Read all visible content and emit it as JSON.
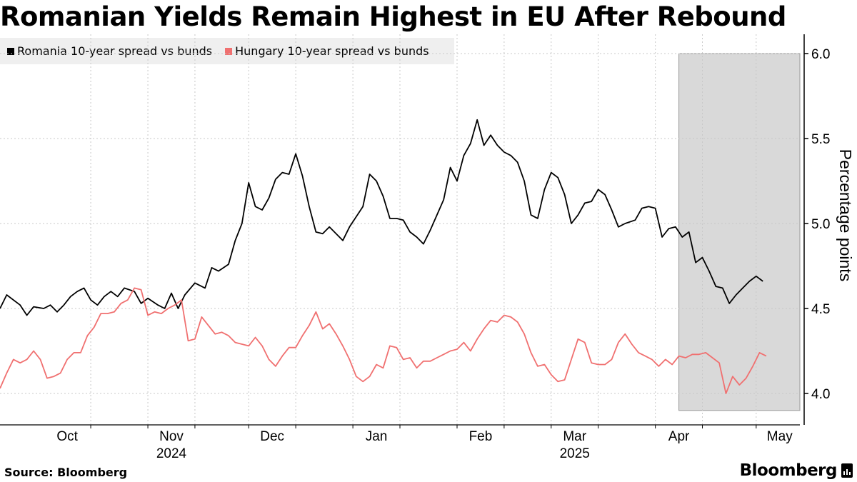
{
  "header": {
    "title": "Romanian Yields Remain Highest in EU After Rebound"
  },
  "footer": {
    "source": "Source: Bloomberg",
    "brand": "Bloomberg"
  },
  "colors": {
    "romania": "#000000",
    "hungary": "#f07070",
    "shade": "#d9d9d9",
    "grid": "#c8c8c8"
  },
  "chart_data": {
    "type": "line",
    "title": "Romanian Yields Remain Highest in EU After Rebound",
    "ylabel": "Percentage points",
    "xlabel": "",
    "ylim": [
      3.9,
      6.0
    ],
    "yticks": [
      4.0,
      4.5,
      5.0,
      5.5,
      6.0
    ],
    "ytick_labels": [
      "4.0",
      "4.5",
      "5.0",
      "5.5",
      "6.0"
    ],
    "x_start": "2024-09-18",
    "x_end": "2025-05-14",
    "x_gridlines": [
      "2024-10-15",
      "2024-11-01",
      "2024-11-15",
      "2024-12-01",
      "2024-12-15",
      "2025-01-01",
      "2025-01-15",
      "2025-02-01",
      "2025-02-15",
      "2025-03-01",
      "2025-03-15",
      "2025-04-01",
      "2025-04-15",
      "2025-05-01"
    ],
    "month_labels": [
      {
        "label": "Oct",
        "date": "2024-10-08"
      },
      {
        "label": "Nov",
        "date": "2024-11-08"
      },
      {
        "label": "Dec",
        "date": "2024-12-08"
      },
      {
        "label": "Jan",
        "date": "2025-01-08"
      },
      {
        "label": "Feb",
        "date": "2025-02-08"
      },
      {
        "label": "Mar",
        "date": "2025-03-08"
      },
      {
        "label": "Apr",
        "date": "2025-04-08"
      },
      {
        "label": "May",
        "date": "2025-05-08"
      }
    ],
    "year_labels": [
      {
        "label": "2024",
        "date": "2024-11-08"
      },
      {
        "label": "2025",
        "date": "2025-03-08"
      }
    ],
    "shaded_region": {
      "start": "2025-04-08",
      "end": "2025-05-14",
      "ymin": 3.9,
      "ymax": 6.0
    },
    "legend": [
      "Romania 10-year spread vs bunds",
      "Hungary 10-year spread vs bunds"
    ],
    "series": [
      {
        "name": "Romania 10-year spread vs bunds",
        "points": [
          [
            "2024-09-18",
            4.5
          ],
          [
            "2024-09-20",
            4.58
          ],
          [
            "2024-09-24",
            4.52
          ],
          [
            "2024-09-26",
            4.46
          ],
          [
            "2024-09-28",
            4.51
          ],
          [
            "2024-10-01",
            4.5
          ],
          [
            "2024-10-03",
            4.52
          ],
          [
            "2024-10-05",
            4.48
          ],
          [
            "2024-10-07",
            4.52
          ],
          [
            "2024-10-09",
            4.57
          ],
          [
            "2024-10-11",
            4.6
          ],
          [
            "2024-10-13",
            4.62
          ],
          [
            "2024-10-15",
            4.55
          ],
          [
            "2024-10-17",
            4.52
          ],
          [
            "2024-10-19",
            4.57
          ],
          [
            "2024-10-21",
            4.6
          ],
          [
            "2024-10-23",
            4.57
          ],
          [
            "2024-10-25",
            4.62
          ],
          [
            "2024-10-28",
            4.6
          ],
          [
            "2024-10-30",
            4.53
          ],
          [
            "2024-11-01",
            4.56
          ],
          [
            "2024-11-04",
            4.52
          ],
          [
            "2024-11-06",
            4.5
          ],
          [
            "2024-11-08",
            4.59
          ],
          [
            "2024-11-10",
            4.5
          ],
          [
            "2024-11-12",
            4.58
          ],
          [
            "2024-11-15",
            4.65
          ],
          [
            "2024-11-18",
            4.62
          ],
          [
            "2024-11-20",
            4.74
          ],
          [
            "2024-11-22",
            4.72
          ],
          [
            "2024-11-25",
            4.76
          ],
          [
            "2024-11-27",
            4.9
          ],
          [
            "2024-11-29",
            5.0
          ],
          [
            "2024-12-01",
            5.24
          ],
          [
            "2024-12-03",
            5.1
          ],
          [
            "2024-12-05",
            5.08
          ],
          [
            "2024-12-07",
            5.15
          ],
          [
            "2024-12-09",
            5.26
          ],
          [
            "2024-12-11",
            5.3
          ],
          [
            "2024-12-13",
            5.29
          ],
          [
            "2024-12-15",
            5.41
          ],
          [
            "2024-12-17",
            5.28
          ],
          [
            "2024-12-19",
            5.1
          ],
          [
            "2024-12-21",
            4.95
          ],
          [
            "2024-12-23",
            4.94
          ],
          [
            "2024-12-25",
            4.98
          ],
          [
            "2024-12-27",
            4.94
          ],
          [
            "2024-12-29",
            4.9
          ],
          [
            "2024-12-31",
            4.98
          ],
          [
            "2025-01-02",
            5.04
          ],
          [
            "2025-01-04",
            5.1
          ],
          [
            "2025-01-06",
            5.29
          ],
          [
            "2025-01-08",
            5.25
          ],
          [
            "2025-01-10",
            5.16
          ],
          [
            "2025-01-12",
            5.03
          ],
          [
            "2025-01-14",
            5.03
          ],
          [
            "2025-01-16",
            5.02
          ],
          [
            "2025-01-18",
            4.95
          ],
          [
            "2025-01-20",
            4.92
          ],
          [
            "2025-01-22",
            4.88
          ],
          [
            "2025-01-24",
            4.96
          ],
          [
            "2025-01-26",
            5.05
          ],
          [
            "2025-01-28",
            5.14
          ],
          [
            "2025-01-30",
            5.33
          ],
          [
            "2025-02-01",
            5.25
          ],
          [
            "2025-02-03",
            5.4
          ],
          [
            "2025-02-05",
            5.47
          ],
          [
            "2025-02-07",
            5.61
          ],
          [
            "2025-02-09",
            5.46
          ],
          [
            "2025-02-11",
            5.52
          ],
          [
            "2025-02-13",
            5.46
          ],
          [
            "2025-02-15",
            5.42
          ],
          [
            "2025-02-17",
            5.4
          ],
          [
            "2025-02-19",
            5.36
          ],
          [
            "2025-02-21",
            5.25
          ],
          [
            "2025-02-23",
            5.05
          ],
          [
            "2025-02-25",
            5.03
          ],
          [
            "2025-02-27",
            5.2
          ],
          [
            "2025-03-01",
            5.3
          ],
          [
            "2025-03-03",
            5.27
          ],
          [
            "2025-03-05",
            5.17
          ],
          [
            "2025-03-07",
            5.0
          ],
          [
            "2025-03-09",
            5.05
          ],
          [
            "2025-03-11",
            5.12
          ],
          [
            "2025-03-13",
            5.13
          ],
          [
            "2025-03-15",
            5.2
          ],
          [
            "2025-03-17",
            5.17
          ],
          [
            "2025-03-19",
            5.08
          ],
          [
            "2025-03-21",
            4.98
          ],
          [
            "2025-03-23",
            5.0
          ],
          [
            "2025-03-26",
            5.02
          ],
          [
            "2025-03-28",
            5.09
          ],
          [
            "2025-03-30",
            5.1
          ],
          [
            "2025-04-01",
            5.09
          ],
          [
            "2025-04-03",
            4.92
          ],
          [
            "2025-04-05",
            4.97
          ],
          [
            "2025-04-07",
            4.98
          ],
          [
            "2025-04-09",
            4.92
          ],
          [
            "2025-04-11",
            4.95
          ],
          [
            "2025-04-13",
            4.77
          ],
          [
            "2025-04-15",
            4.8
          ],
          [
            "2025-04-17",
            4.72
          ],
          [
            "2025-04-19",
            4.63
          ],
          [
            "2025-04-21",
            4.62
          ],
          [
            "2025-04-23",
            4.53
          ],
          [
            "2025-04-25",
            4.58
          ],
          [
            "2025-04-27",
            4.62
          ],
          [
            "2025-04-29",
            4.66
          ],
          [
            "2025-05-01",
            4.69
          ],
          [
            "2025-05-03",
            4.66
          ]
        ]
      },
      {
        "name": "Hungary 10-year spread vs bunds",
        "points": [
          [
            "2024-09-18",
            4.03
          ],
          [
            "2024-09-20",
            4.12
          ],
          [
            "2024-09-22",
            4.2
          ],
          [
            "2024-09-24",
            4.18
          ],
          [
            "2024-09-26",
            4.2
          ],
          [
            "2024-09-28",
            4.25
          ],
          [
            "2024-09-30",
            4.2
          ],
          [
            "2024-10-02",
            4.09
          ],
          [
            "2024-10-04",
            4.1
          ],
          [
            "2024-10-06",
            4.12
          ],
          [
            "2024-10-08",
            4.2
          ],
          [
            "2024-10-10",
            4.24
          ],
          [
            "2024-10-12",
            4.24
          ],
          [
            "2024-10-14",
            4.34
          ],
          [
            "2024-10-16",
            4.39
          ],
          [
            "2024-10-18",
            4.47
          ],
          [
            "2024-10-20",
            4.47
          ],
          [
            "2024-10-22",
            4.48
          ],
          [
            "2024-10-24",
            4.53
          ],
          [
            "2024-10-26",
            4.55
          ],
          [
            "2024-10-28",
            4.62
          ],
          [
            "2024-10-30",
            4.61
          ],
          [
            "2024-11-01",
            4.46
          ],
          [
            "2024-11-03",
            4.48
          ],
          [
            "2024-11-05",
            4.47
          ],
          [
            "2024-11-07",
            4.5
          ],
          [
            "2024-11-09",
            4.52
          ],
          [
            "2024-11-11",
            4.55
          ],
          [
            "2024-11-13",
            4.31
          ],
          [
            "2024-11-15",
            4.32
          ],
          [
            "2024-11-17",
            4.45
          ],
          [
            "2024-11-19",
            4.4
          ],
          [
            "2024-11-21",
            4.35
          ],
          [
            "2024-11-23",
            4.36
          ],
          [
            "2024-11-25",
            4.34
          ],
          [
            "2024-11-27",
            4.3
          ],
          [
            "2024-11-29",
            4.29
          ],
          [
            "2024-12-01",
            4.28
          ],
          [
            "2024-12-03",
            4.33
          ],
          [
            "2024-12-05",
            4.28
          ],
          [
            "2024-12-07",
            4.2
          ],
          [
            "2024-12-09",
            4.16
          ],
          [
            "2024-12-11",
            4.22
          ],
          [
            "2024-12-13",
            4.27
          ],
          [
            "2024-12-15",
            4.27
          ],
          [
            "2024-12-17",
            4.34
          ],
          [
            "2024-12-19",
            4.4
          ],
          [
            "2024-12-21",
            4.48
          ],
          [
            "2024-12-23",
            4.38
          ],
          [
            "2024-12-25",
            4.41
          ],
          [
            "2024-12-27",
            4.35
          ],
          [
            "2024-12-29",
            4.28
          ],
          [
            "2024-12-31",
            4.2
          ],
          [
            "2025-01-02",
            4.1
          ],
          [
            "2025-01-04",
            4.07
          ],
          [
            "2025-01-06",
            4.1
          ],
          [
            "2025-01-08",
            4.17
          ],
          [
            "2025-01-10",
            4.15
          ],
          [
            "2025-01-12",
            4.28
          ],
          [
            "2025-01-14",
            4.27
          ],
          [
            "2025-01-16",
            4.2
          ],
          [
            "2025-01-18",
            4.21
          ],
          [
            "2025-01-20",
            4.15
          ],
          [
            "2025-01-22",
            4.19
          ],
          [
            "2025-01-24",
            4.19
          ],
          [
            "2025-01-26",
            4.21
          ],
          [
            "2025-01-28",
            4.23
          ],
          [
            "2025-01-30",
            4.25
          ],
          [
            "2025-02-01",
            4.26
          ],
          [
            "2025-02-03",
            4.3
          ],
          [
            "2025-02-05",
            4.25
          ],
          [
            "2025-02-07",
            4.32
          ],
          [
            "2025-02-09",
            4.38
          ],
          [
            "2025-02-11",
            4.43
          ],
          [
            "2025-02-13",
            4.42
          ],
          [
            "2025-02-15",
            4.46
          ],
          [
            "2025-02-17",
            4.45
          ],
          [
            "2025-02-19",
            4.42
          ],
          [
            "2025-02-21",
            4.35
          ],
          [
            "2025-02-23",
            4.24
          ],
          [
            "2025-02-25",
            4.16
          ],
          [
            "2025-02-27",
            4.17
          ],
          [
            "2025-03-01",
            4.11
          ],
          [
            "2025-03-03",
            4.07
          ],
          [
            "2025-03-05",
            4.08
          ],
          [
            "2025-03-07",
            4.2
          ],
          [
            "2025-03-09",
            4.32
          ],
          [
            "2025-03-11",
            4.3
          ],
          [
            "2025-03-13",
            4.18
          ],
          [
            "2025-03-15",
            4.17
          ],
          [
            "2025-03-17",
            4.17
          ],
          [
            "2025-03-19",
            4.2
          ],
          [
            "2025-03-21",
            4.3
          ],
          [
            "2025-03-23",
            4.35
          ],
          [
            "2025-03-25",
            4.29
          ],
          [
            "2025-03-27",
            4.24
          ],
          [
            "2025-03-29",
            4.22
          ],
          [
            "2025-03-31",
            4.2
          ],
          [
            "2025-04-02",
            4.16
          ],
          [
            "2025-04-04",
            4.2
          ],
          [
            "2025-04-06",
            4.17
          ],
          [
            "2025-04-08",
            4.22
          ],
          [
            "2025-04-10",
            4.21
          ],
          [
            "2025-04-12",
            4.23
          ],
          [
            "2025-04-14",
            4.23
          ],
          [
            "2025-04-16",
            4.24
          ],
          [
            "2025-04-18",
            4.21
          ],
          [
            "2025-04-20",
            4.18
          ],
          [
            "2025-04-22",
            4.0
          ],
          [
            "2025-04-24",
            4.1
          ],
          [
            "2025-04-26",
            4.05
          ],
          [
            "2025-04-28",
            4.09
          ],
          [
            "2025-04-30",
            4.16
          ],
          [
            "2025-05-02",
            4.24
          ],
          [
            "2025-05-04",
            4.22
          ]
        ]
      }
    ]
  }
}
